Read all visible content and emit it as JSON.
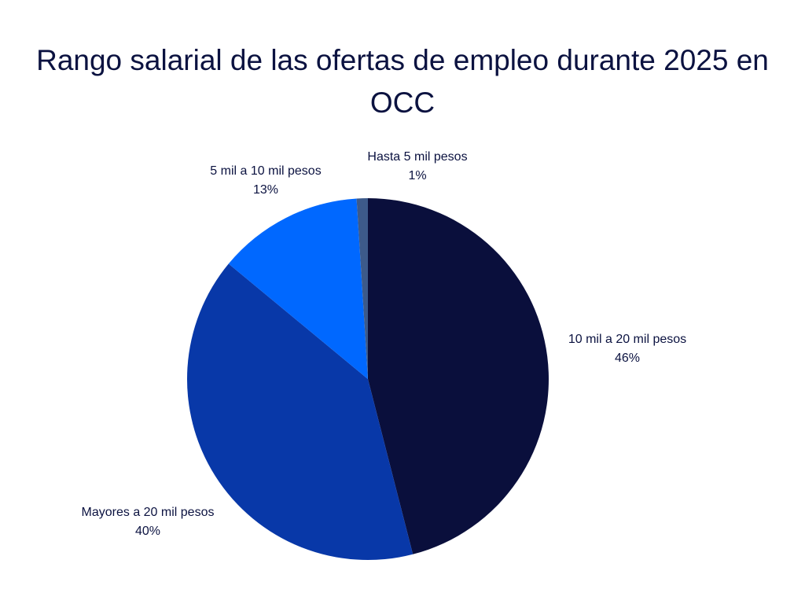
{
  "chart_data": {
    "type": "pie",
    "title": "Rango salarial de las ofertas de empleo durante 2025 en OCC",
    "slices": [
      {
        "label": "10 mil a 20 mil pesos",
        "value": 46,
        "value_label": "46%",
        "color": "#0a0f3c"
      },
      {
        "label": "Mayores a 20 mil pesos",
        "value": 40,
        "value_label": "40%",
        "color": "#0838a8"
      },
      {
        "label": "5 mil a 10 mil pesos",
        "value": 13,
        "value_label": "13%",
        "color": "#0068ff"
      },
      {
        "label": "Hasta 5 mil pesos",
        "value": 1,
        "value_label": "1%",
        "color": "#3d5a8a"
      }
    ],
    "start_position": "12 o'clock, clockwise",
    "legend": "none (labels beside slices)"
  }
}
